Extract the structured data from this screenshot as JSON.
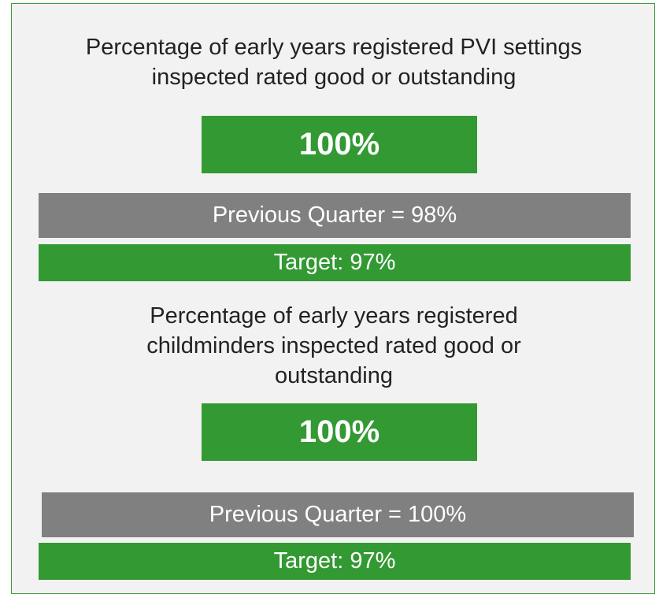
{
  "kpis": [
    {
      "title": "Percentage of early years registered PVI settings inspected rated good or outstanding",
      "value": "100%",
      "previous": "Previous Quarter = 98%",
      "target": "Target: 97%"
    },
    {
      "title": "Percentage of early years registered childminders inspected rated good or outstanding",
      "value": "100%",
      "previous": "Previous Quarter = 100%",
      "target": "Target: 97%"
    }
  ]
}
